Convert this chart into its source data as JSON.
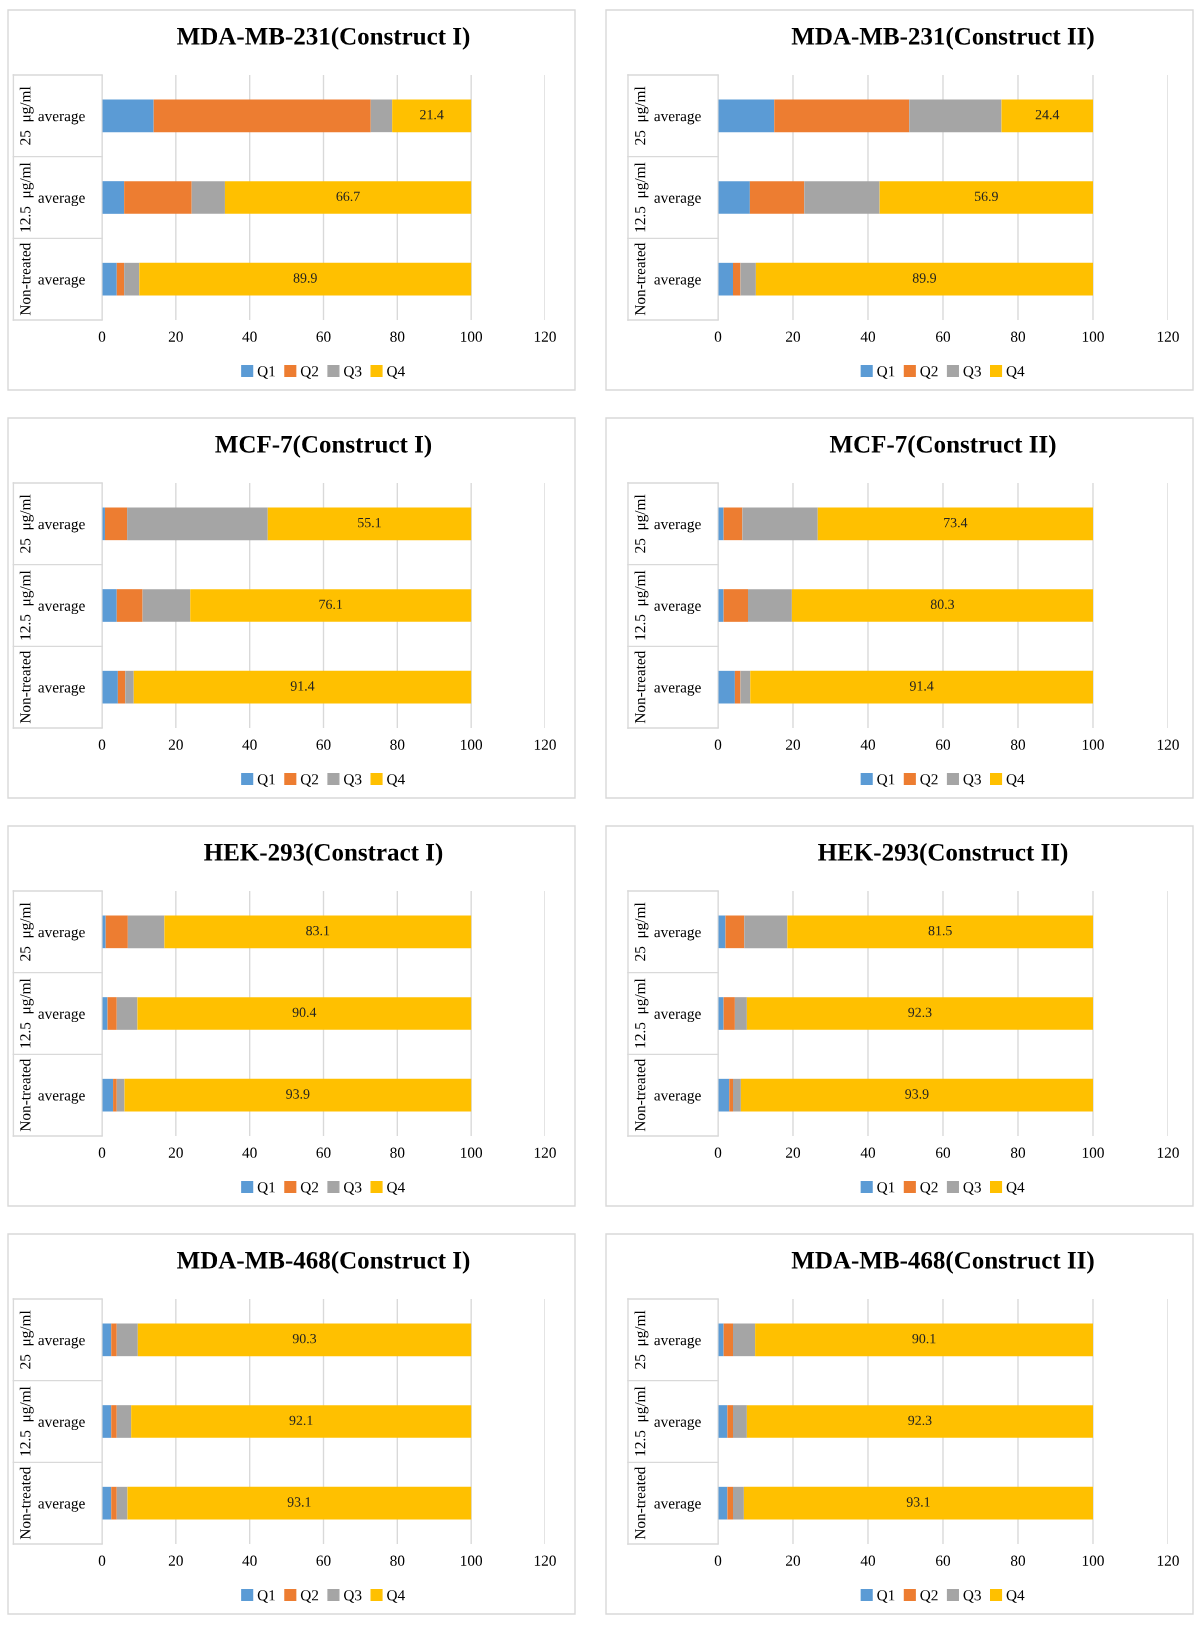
{
  "chart_data": [
    {
      "type": "bar",
      "orientation": "horizontal",
      "stacked": true,
      "title": "MDA-MB-231(Construct I)",
      "categories": [
        "average",
        "average",
        "average"
      ],
      "annotations": [
        "25  μg/ml",
        "12.5  μg/ml",
        "Non-treated"
      ],
      "xlim": [
        0,
        120
      ],
      "xticks": [
        0,
        20,
        40,
        60,
        80,
        100,
        120
      ],
      "grid": "x",
      "legend": "bottom",
      "series": [
        {
          "name": "Q1",
          "color": "#5b9bd5",
          "values": [
            14,
            6,
            4
          ]
        },
        {
          "name": "Q2",
          "color": "#ed7d31",
          "values": [
            58.8,
            18.3,
            2
          ]
        },
        {
          "name": "Q3",
          "color": "#a5a5a5",
          "values": [
            5.8,
            9,
            4.1
          ]
        },
        {
          "name": "Q4",
          "color": "#ffc000",
          "values": [
            21.4,
            66.7,
            89.9
          ],
          "value_labels": [
            "21.4",
            "66.7",
            "89.9"
          ]
        }
      ]
    },
    {
      "type": "bar",
      "orientation": "horizontal",
      "stacked": true,
      "title": "MDA-MB-231(Construct II)",
      "categories": [
        "average",
        "average",
        "average"
      ],
      "annotations": [
        "25  μg/ml",
        "12.5  μg/ml",
        "Non-treated"
      ],
      "xlim": [
        0,
        120
      ],
      "xticks": [
        0,
        20,
        40,
        60,
        80,
        100,
        120
      ],
      "grid": "x",
      "legend": "bottom",
      "series": [
        {
          "name": "Q1",
          "color": "#5b9bd5",
          "values": [
            15,
            8.5,
            4
          ]
        },
        {
          "name": "Q2",
          "color": "#ed7d31",
          "values": [
            36,
            14.5,
            2
          ]
        },
        {
          "name": "Q3",
          "color": "#a5a5a5",
          "values": [
            24.6,
            20.1,
            4.1
          ]
        },
        {
          "name": "Q4",
          "color": "#ffc000",
          "values": [
            24.4,
            56.9,
            89.9
          ],
          "value_labels": [
            "24.4",
            "56.9",
            "89.9"
          ]
        }
      ]
    },
    {
      "type": "bar",
      "orientation": "horizontal",
      "stacked": true,
      "title": "MCF-7(Construct I)",
      "categories": [
        "average",
        "average",
        "average"
      ],
      "annotations": [
        "25  μg/ml",
        "12.5  μg/ml",
        "Non-treated"
      ],
      "xlim": [
        0,
        120
      ],
      "xticks": [
        0,
        20,
        40,
        60,
        80,
        100,
        120
      ],
      "grid": "x",
      "legend": "bottom",
      "series": [
        {
          "name": "Q1",
          "color": "#5b9bd5",
          "values": [
            0.8,
            4,
            4.3
          ]
        },
        {
          "name": "Q2",
          "color": "#ed7d31",
          "values": [
            6,
            7,
            2
          ]
        },
        {
          "name": "Q3",
          "color": "#a5a5a5",
          "values": [
            38.1,
            12.9,
            2.3
          ]
        },
        {
          "name": "Q4",
          "color": "#ffc000",
          "values": [
            55.1,
            76.1,
            91.4
          ],
          "value_labels": [
            "55.1",
            "76.1",
            "91.4"
          ]
        }
      ]
    },
    {
      "type": "bar",
      "orientation": "horizontal",
      "stacked": true,
      "title": "MCF-7(Construct II)",
      "categories": [
        "average",
        "average",
        "average"
      ],
      "annotations": [
        "25  μg/ml",
        "12.5  μg/ml",
        "Non-treated"
      ],
      "xlim": [
        0,
        120
      ],
      "xticks": [
        0,
        20,
        40,
        60,
        80,
        100,
        120
      ],
      "grid": "x",
      "legend": "bottom",
      "series": [
        {
          "name": "Q1",
          "color": "#5b9bd5",
          "values": [
            1.5,
            1.5,
            4.5
          ]
        },
        {
          "name": "Q2",
          "color": "#ed7d31",
          "values": [
            5,
            6.5,
            1.5
          ]
        },
        {
          "name": "Q3",
          "color": "#a5a5a5",
          "values": [
            20.1,
            11.7,
            2.6
          ]
        },
        {
          "name": "Q4",
          "color": "#ffc000",
          "values": [
            73.4,
            80.3,
            91.4
          ],
          "value_labels": [
            "73.4",
            "80.3",
            "91.4"
          ]
        }
      ]
    },
    {
      "type": "bar",
      "orientation": "horizontal",
      "stacked": true,
      "title": "HEK-293(Constract I)",
      "categories": [
        "average",
        "average",
        "average"
      ],
      "annotations": [
        "25  μg/ml",
        "12.5  μg/ml",
        "Non-treated"
      ],
      "xlim": [
        0,
        120
      ],
      "xticks": [
        0,
        20,
        40,
        60,
        80,
        100,
        120
      ],
      "grid": "x",
      "legend": "bottom",
      "series": [
        {
          "name": "Q1",
          "color": "#5b9bd5",
          "values": [
            1,
            1.5,
            3
          ]
        },
        {
          "name": "Q2",
          "color": "#ed7d31",
          "values": [
            6,
            2.5,
            1
          ]
        },
        {
          "name": "Q3",
          "color": "#a5a5a5",
          "values": [
            9.9,
            5.6,
            2.1
          ]
        },
        {
          "name": "Q4",
          "color": "#ffc000",
          "values": [
            83.1,
            90.4,
            93.9
          ],
          "value_labels": [
            "83.1",
            "90.4",
            "93.9"
          ]
        }
      ]
    },
    {
      "type": "bar",
      "orientation": "horizontal",
      "stacked": true,
      "title": "HEK-293(Construct II)",
      "categories": [
        "average",
        "average",
        "average"
      ],
      "annotations": [
        "25  μg/ml",
        "12.5  μg/ml",
        "Non-treated"
      ],
      "xlim": [
        0,
        120
      ],
      "xticks": [
        0,
        20,
        40,
        60,
        80,
        100,
        120
      ],
      "grid": "x",
      "legend": "bottom",
      "series": [
        {
          "name": "Q1",
          "color": "#5b9bd5",
          "values": [
            2,
            1.5,
            3
          ]
        },
        {
          "name": "Q2",
          "color": "#ed7d31",
          "values": [
            5,
            3,
            1
          ]
        },
        {
          "name": "Q3",
          "color": "#a5a5a5",
          "values": [
            11.5,
            3.2,
            2.1
          ]
        },
        {
          "name": "Q4",
          "color": "#ffc000",
          "values": [
            81.5,
            92.3,
            93.9
          ],
          "value_labels": [
            "81.5",
            "92.3",
            "93.9"
          ]
        }
      ]
    },
    {
      "type": "bar",
      "orientation": "horizontal",
      "stacked": true,
      "title": "MDA-MB-468(Construct I)",
      "categories": [
        "average",
        "average",
        "average"
      ],
      "annotations": [
        "25  μg/ml",
        "12.5  μg/ml",
        "Non-treated"
      ],
      "xlim": [
        0,
        120
      ],
      "xticks": [
        0,
        20,
        40,
        60,
        80,
        100,
        120
      ],
      "grid": "x",
      "legend": "bottom",
      "series": [
        {
          "name": "Q1",
          "color": "#5b9bd5",
          "values": [
            2.5,
            2.5,
            2.5
          ]
        },
        {
          "name": "Q2",
          "color": "#ed7d31",
          "values": [
            1.5,
            1.5,
            1.5
          ]
        },
        {
          "name": "Q3",
          "color": "#a5a5a5",
          "values": [
            5.7,
            3.9,
            2.9
          ]
        },
        {
          "name": "Q4",
          "color": "#ffc000",
          "values": [
            90.3,
            92.1,
            93.1
          ],
          "value_labels": [
            "90.3",
            "92.1",
            "93.1"
          ]
        }
      ]
    },
    {
      "type": "bar",
      "orientation": "horizontal",
      "stacked": true,
      "title": "MDA-MB-468(Construct II)",
      "categories": [
        "average",
        "average",
        "average"
      ],
      "annotations": [
        "25  μg/ml",
        "12.5  μg/ml",
        "Non-treated"
      ],
      "xlim": [
        0,
        120
      ],
      "xticks": [
        0,
        20,
        40,
        60,
        80,
        100,
        120
      ],
      "grid": "x",
      "legend": "bottom",
      "series": [
        {
          "name": "Q1",
          "color": "#5b9bd5",
          "values": [
            1.5,
            2.5,
            2.5
          ]
        },
        {
          "name": "Q2",
          "color": "#ed7d31",
          "values": [
            2.5,
            1.5,
            1.5
          ]
        },
        {
          "name": "Q3",
          "color": "#a5a5a5",
          "values": [
            5.9,
            3.7,
            2.9
          ]
        },
        {
          "name": "Q4",
          "color": "#ffc000",
          "values": [
            90.1,
            92.3,
            93.1
          ],
          "value_labels": [
            "90.1",
            "92.3",
            "93.1"
          ]
        }
      ]
    }
  ]
}
